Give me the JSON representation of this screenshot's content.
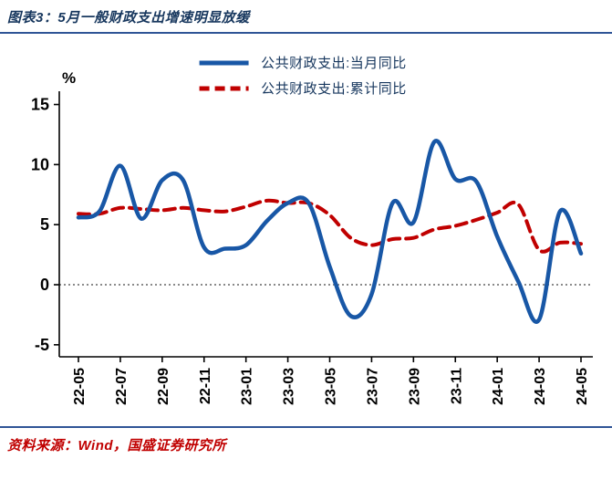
{
  "header": {
    "title": "图表3：5月一般财政支出增速明显放缓"
  },
  "footer": {
    "source": "资料来源：Wind，国盛证券研究所"
  },
  "colors": {
    "title_text": "#17375e",
    "rule_line": "#2f5496",
    "source_text": "#c00000",
    "axis": "#000000",
    "monthly_series": "#1857a6",
    "cumulative_series": "#c00000"
  },
  "chart_data": {
    "type": "line",
    "title": "图表3：5月一般财政支出增速明显放缓",
    "ylabel": "%",
    "xlabel": "",
    "ylim": [
      -5,
      15
    ],
    "yticks": [
      15,
      10,
      5,
      0,
      -5
    ],
    "grid": false,
    "zero_line": "dotted",
    "legend_position": "top-center",
    "x": [
      "22-05",
      "22-06",
      "22-07",
      "22-08",
      "22-09",
      "22-10",
      "22-11",
      "22-12",
      "23-01",
      "23-02",
      "23-03",
      "23-04",
      "23-05",
      "23-06",
      "23-07",
      "23-08",
      "23-09",
      "23-10",
      "23-11",
      "23-12",
      "24-01",
      "24-02",
      "24-03",
      "24-04",
      "24-05"
    ],
    "x_tick_labels": [
      "22-05",
      "22-07",
      "22-09",
      "22-11",
      "23-01",
      "23-03",
      "23-05",
      "23-07",
      "23-09",
      "23-11",
      "24-01",
      "24-03",
      "24-05"
    ],
    "series": [
      {
        "name": "公共财政支出:当月同比",
        "color": "#1857a6",
        "dash": "solid",
        "values": [
          5.6,
          6.1,
          9.9,
          5.5,
          8.7,
          8.7,
          3.1,
          3.0,
          3.3,
          5.3,
          6.8,
          6.8,
          1.5,
          -2.6,
          -0.8,
          6.8,
          5.2,
          11.9,
          8.8,
          8.6,
          4.0,
          0.3,
          -2.9,
          6.1,
          2.6
        ]
      },
      {
        "name": "公共财政支出:累计同比",
        "color": "#c00000",
        "dash": "dashed",
        "values": [
          5.9,
          5.9,
          6.4,
          6.3,
          6.2,
          6.4,
          6.2,
          6.1,
          6.5,
          7.0,
          6.8,
          6.8,
          5.8,
          3.9,
          3.3,
          3.8,
          3.9,
          4.6,
          4.9,
          5.4,
          6.0,
          6.7,
          2.9,
          3.5,
          3.4
        ]
      }
    ]
  }
}
